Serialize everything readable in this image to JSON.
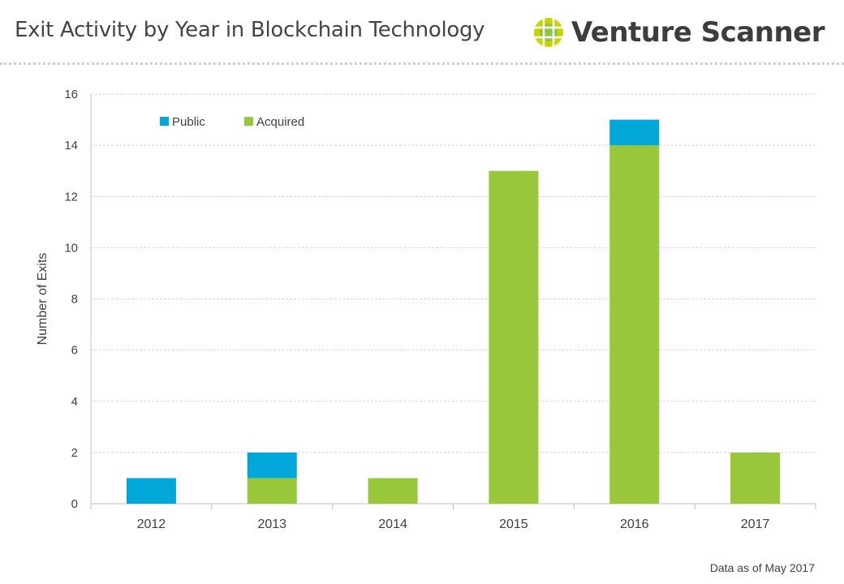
{
  "header": {
    "title": "Exit Activity by Year in Blockchain Technology",
    "logo_text": "Venture Scanner",
    "logo_icon": "green-yellow-globe-icon",
    "logo_colors": {
      "outer": "#c8d400",
      "inner": "#8dc63f"
    }
  },
  "footnote": "Data as of May 2017",
  "chart_data": {
    "type": "bar",
    "stacked": true,
    "categories": [
      "2012",
      "2013",
      "2014",
      "2015",
      "2016",
      "2017"
    ],
    "series": [
      {
        "name": "Acquired",
        "color": "#98c73b",
        "values": [
          0,
          1,
          1,
          13,
          14,
          2
        ]
      },
      {
        "name": "Public",
        "color": "#00a7d8",
        "values": [
          1,
          1,
          0,
          0,
          1,
          0
        ]
      }
    ],
    "legend_order": [
      "Public",
      "Acquired"
    ],
    "legend_position": "top-left",
    "title": "",
    "xlabel": "",
    "ylabel": "Number of Exits",
    "ylim": [
      0,
      16
    ],
    "yticks": [
      0,
      2,
      4,
      6,
      8,
      10,
      12,
      14,
      16
    ],
    "grid": true
  }
}
